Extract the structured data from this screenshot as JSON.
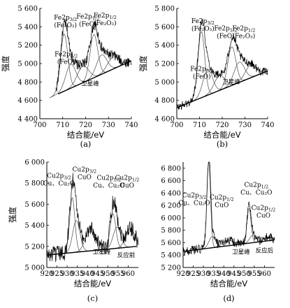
{
  "colors": {
    "data": "#000000",
    "fit": "#4d4d4d",
    "axis": "#000000"
  },
  "chart_data": [
    {
      "type": "line",
      "panel_label": "(a)",
      "xlabel": "结合能/eV",
      "ylabel": "强度",
      "xlim": [
        700,
        740
      ],
      "ylim": [
        4400,
        5600
      ],
      "xticks": [
        700,
        710,
        720,
        730,
        740
      ],
      "yticks": [
        4400,
        4600,
        4800,
        5000,
        5200,
        5400,
        5600
      ],
      "xticklabels": [
        "700",
        "710",
        "720",
        "730",
        "740"
      ],
      "yticklabels": [
        "4 400",
        "4 600",
        "4 800",
        "5 000",
        "5 200",
        "5 400",
        "5 600"
      ],
      "baseline": {
        "x": [
          708,
          740
        ],
        "y": [
          4670,
          5030
        ]
      },
      "peaks": [
        {
          "center": 710.6,
          "amp": 620,
          "width": 1.6
        },
        {
          "center": 713.5,
          "amp": 260,
          "width": 2.2
        },
        {
          "center": 718.8,
          "amp": 180,
          "width": 2.5
        },
        {
          "center": 723.6,
          "amp": 470,
          "width": 1.7
        },
        {
          "center": 727.0,
          "amp": 210,
          "width": 2.3
        },
        {
          "center": 732.0,
          "amp": 130,
          "width": 2.5
        }
      ],
      "noise": 55,
      "annotations": [
        {
          "lines": [
            "Fe2p",
            "(Fe₂O₃)"
          ],
          "sub": "3/2",
          "ax": 711.2,
          "ay": 5480
        },
        {
          "lines": [
            "Fe2p",
            "(FeO)"
          ],
          "sub": "3/2",
          "ax": 711.5,
          "ay": 5080
        },
        {
          "lines": [
            "Fe2p",
            "(FeO)"
          ],
          "sub": "1/2",
          "ax": 721.0,
          "ay": 5490
        },
        {
          "lines": [
            "Fe2p",
            "(Fe₂O₃)"
          ],
          "sub": "1/2",
          "ax": 728.5,
          "ay": 5500
        },
        {
          "lines": [
            "卫星峰"
          ],
          "sub": "",
          "ax": 722.0,
          "ay": 4760
        }
      ]
    },
    {
      "type": "line",
      "panel_label": "(b)",
      "xlabel": "结合能/eV",
      "ylabel": "强度",
      "xlim": [
        700,
        740
      ],
      "ylim": [
        4600,
        5800
      ],
      "xticks": [
        700,
        710,
        720,
        730,
        740
      ],
      "yticks": [
        4600,
        4800,
        5000,
        5200,
        5400,
        5600,
        5800
      ],
      "xticklabels": [
        "700",
        "710",
        "720",
        "730",
        "740"
      ],
      "yticklabels": [
        "4 600",
        "4 800",
        "5 000",
        "5 200",
        "5 400",
        "5 600",
        "5 800"
      ],
      "baseline": {
        "x": [
          700,
          740
        ],
        "y": [
          4720,
          5120
        ]
      },
      "peaks": [
        {
          "center": 710.8,
          "amp": 720,
          "width": 1.5
        },
        {
          "center": 713.6,
          "amp": 280,
          "width": 2.1
        },
        {
          "center": 718.8,
          "amp": 160,
          "width": 2.4
        },
        {
          "center": 724.2,
          "amp": 420,
          "width": 1.8
        },
        {
          "center": 727.5,
          "amp": 220,
          "width": 2.3
        },
        {
          "center": 732.5,
          "amp": 140,
          "width": 2.4
        }
      ],
      "noise": 45,
      "annotations": [
        {
          "lines": [
            "Fe2p",
            "(Fe₂O₃)"
          ],
          "sub": "3/2",
          "ax": 711.5,
          "ay": 5640
        },
        {
          "lines": [
            "Fe2p",
            "(FeO)"
          ],
          "sub": "3/2",
          "ax": 711.0,
          "ay": 5120
        },
        {
          "lines": [
            "Fe2p",
            "(FeO)"
          ],
          "sub": "1/2",
          "ax": 721.5,
          "ay": 5560
        },
        {
          "lines": [
            "Fe2p",
            "(Fe₂O₃)"
          ],
          "sub": "1/2",
          "ax": 729.5,
          "ay": 5560
        },
        {
          "lines": [
            "卫星峰"
          ],
          "sub": "",
          "ax": 724.0,
          "ay": 4980
        }
      ]
    },
    {
      "type": "line",
      "panel_label": "(c)",
      "xlabel": "结合能/eV",
      "ylabel": "强度",
      "xlim": [
        920,
        965
      ],
      "ylim": [
        5000,
        6000
      ],
      "xticks": [
        920,
        925,
        930,
        935,
        940,
        945,
        950,
        955,
        960
      ],
      "yticks": [
        5000,
        5200,
        5400,
        5600,
        5800,
        6000
      ],
      "xticklabels": [
        "920",
        "925",
        "930",
        "935",
        "940",
        "945",
        "950",
        "955",
        "960"
      ],
      "yticklabels": [
        "5 000",
        "5 200",
        "5 400",
        "5 600",
        "5 800",
        "6 000"
      ],
      "baseline": {
        "x": [
          921,
          964
        ],
        "y": [
          5120,
          5200
        ]
      },
      "peaks": [
        {
          "center": 932.5,
          "amp": 520,
          "width": 1.3
        },
        {
          "center": 934.5,
          "amp": 300,
          "width": 1.8
        },
        {
          "center": 941.5,
          "amp": 220,
          "width": 2.4
        },
        {
          "center": 952.5,
          "amp": 330,
          "width": 1.4
        },
        {
          "center": 954.5,
          "amp": 200,
          "width": 1.9
        },
        {
          "center": 961.0,
          "amp": 180,
          "width": 2.2
        }
      ],
      "noise": 80,
      "annotations": [
        {
          "lines": [
            "Cu2p",
            "Cu、Cu₂O"
          ],
          "sub": "3/2",
          "ax": 926.0,
          "ay": 5850
        },
        {
          "lines": [
            "Cu2p",
            "CuO"
          ],
          "sub": "3/2",
          "ax": 938.5,
          "ay": 5910
        },
        {
          "lines": [
            "Cu2p",
            "Cu、Cu₂O"
          ],
          "sub": "1/2",
          "ax": 950.5,
          "ay": 5830
        },
        {
          "lines": [
            "Cu2p",
            "CuO"
          ],
          "sub": "1/2",
          "ax": 959.5,
          "ay": 5830
        },
        {
          "lines": [
            "卫星峰"
          ],
          "sub": "",
          "ax": 947.0,
          "ay": 5130
        },
        {
          "lines": [
            "反应前"
          ],
          "sub": "",
          "ax": 959.0,
          "ay": 5100
        }
      ]
    },
    {
      "type": "line",
      "panel_label": "(d)",
      "xlabel": "结合能/eV",
      "ylabel": "",
      "xlim": [
        920,
        965
      ],
      "ylim": [
        5200,
        6900
      ],
      "xticks": [
        920,
        925,
        930,
        935,
        940,
        945,
        950,
        955,
        960
      ],
      "yticks": [
        5200,
        5400,
        5600,
        5800,
        6000,
        6200,
        6400,
        6600,
        6800
      ],
      "xticklabels": [
        "920",
        "925",
        "930",
        "935",
        "940",
        "945",
        "950",
        "955",
        "960"
      ],
      "yticklabels": [
        "5 200",
        "5 400",
        "5 600",
        "5 800",
        "6 000",
        "6 200",
        "6 400",
        "6 600",
        "6 800"
      ],
      "baseline": {
        "x": [
          920,
          964
        ],
        "y": [
          5460,
          5640
        ]
      },
      "peaks": [
        {
          "center": 932.6,
          "amp": 1380,
          "width": 0.9
        },
        {
          "center": 934.3,
          "amp": 180,
          "width": 1.6
        },
        {
          "center": 942.0,
          "amp": 90,
          "width": 2.5
        },
        {
          "center": 952.4,
          "amp": 560,
          "width": 1.0
        },
        {
          "center": 954.3,
          "amp": 120,
          "width": 1.6
        },
        {
          "center": 961.5,
          "amp": 60,
          "width": 2.0
        }
      ],
      "noise": 75,
      "annotations": [
        {
          "lines": [
            "Cu2p",
            "Cu、Cu₂O"
          ],
          "sub": "3/2",
          "ax": 925.5,
          "ay": 6330
        },
        {
          "lines": [
            "Cu2p",
            "CuO"
          ],
          "sub": "1/2",
          "ax": 939.0,
          "ay": 6300
        },
        {
          "lines": [
            "Cu2p",
            "Cu、Cu₂O"
          ],
          "sub": "1/2",
          "ax": 956.0,
          "ay": 6500
        },
        {
          "lines": [
            "Cu2p",
            "CuO"
          ],
          "sub": "1/2",
          "ax": 959.5,
          "ay": 6130
        },
        {
          "lines": [
            "卫星峰"
          ],
          "sub": "",
          "ax": 948.5,
          "ay": 5420
        },
        {
          "lines": [
            "反应后"
          ],
          "sub": "",
          "ax": 960.0,
          "ay": 5440
        }
      ]
    }
  ]
}
